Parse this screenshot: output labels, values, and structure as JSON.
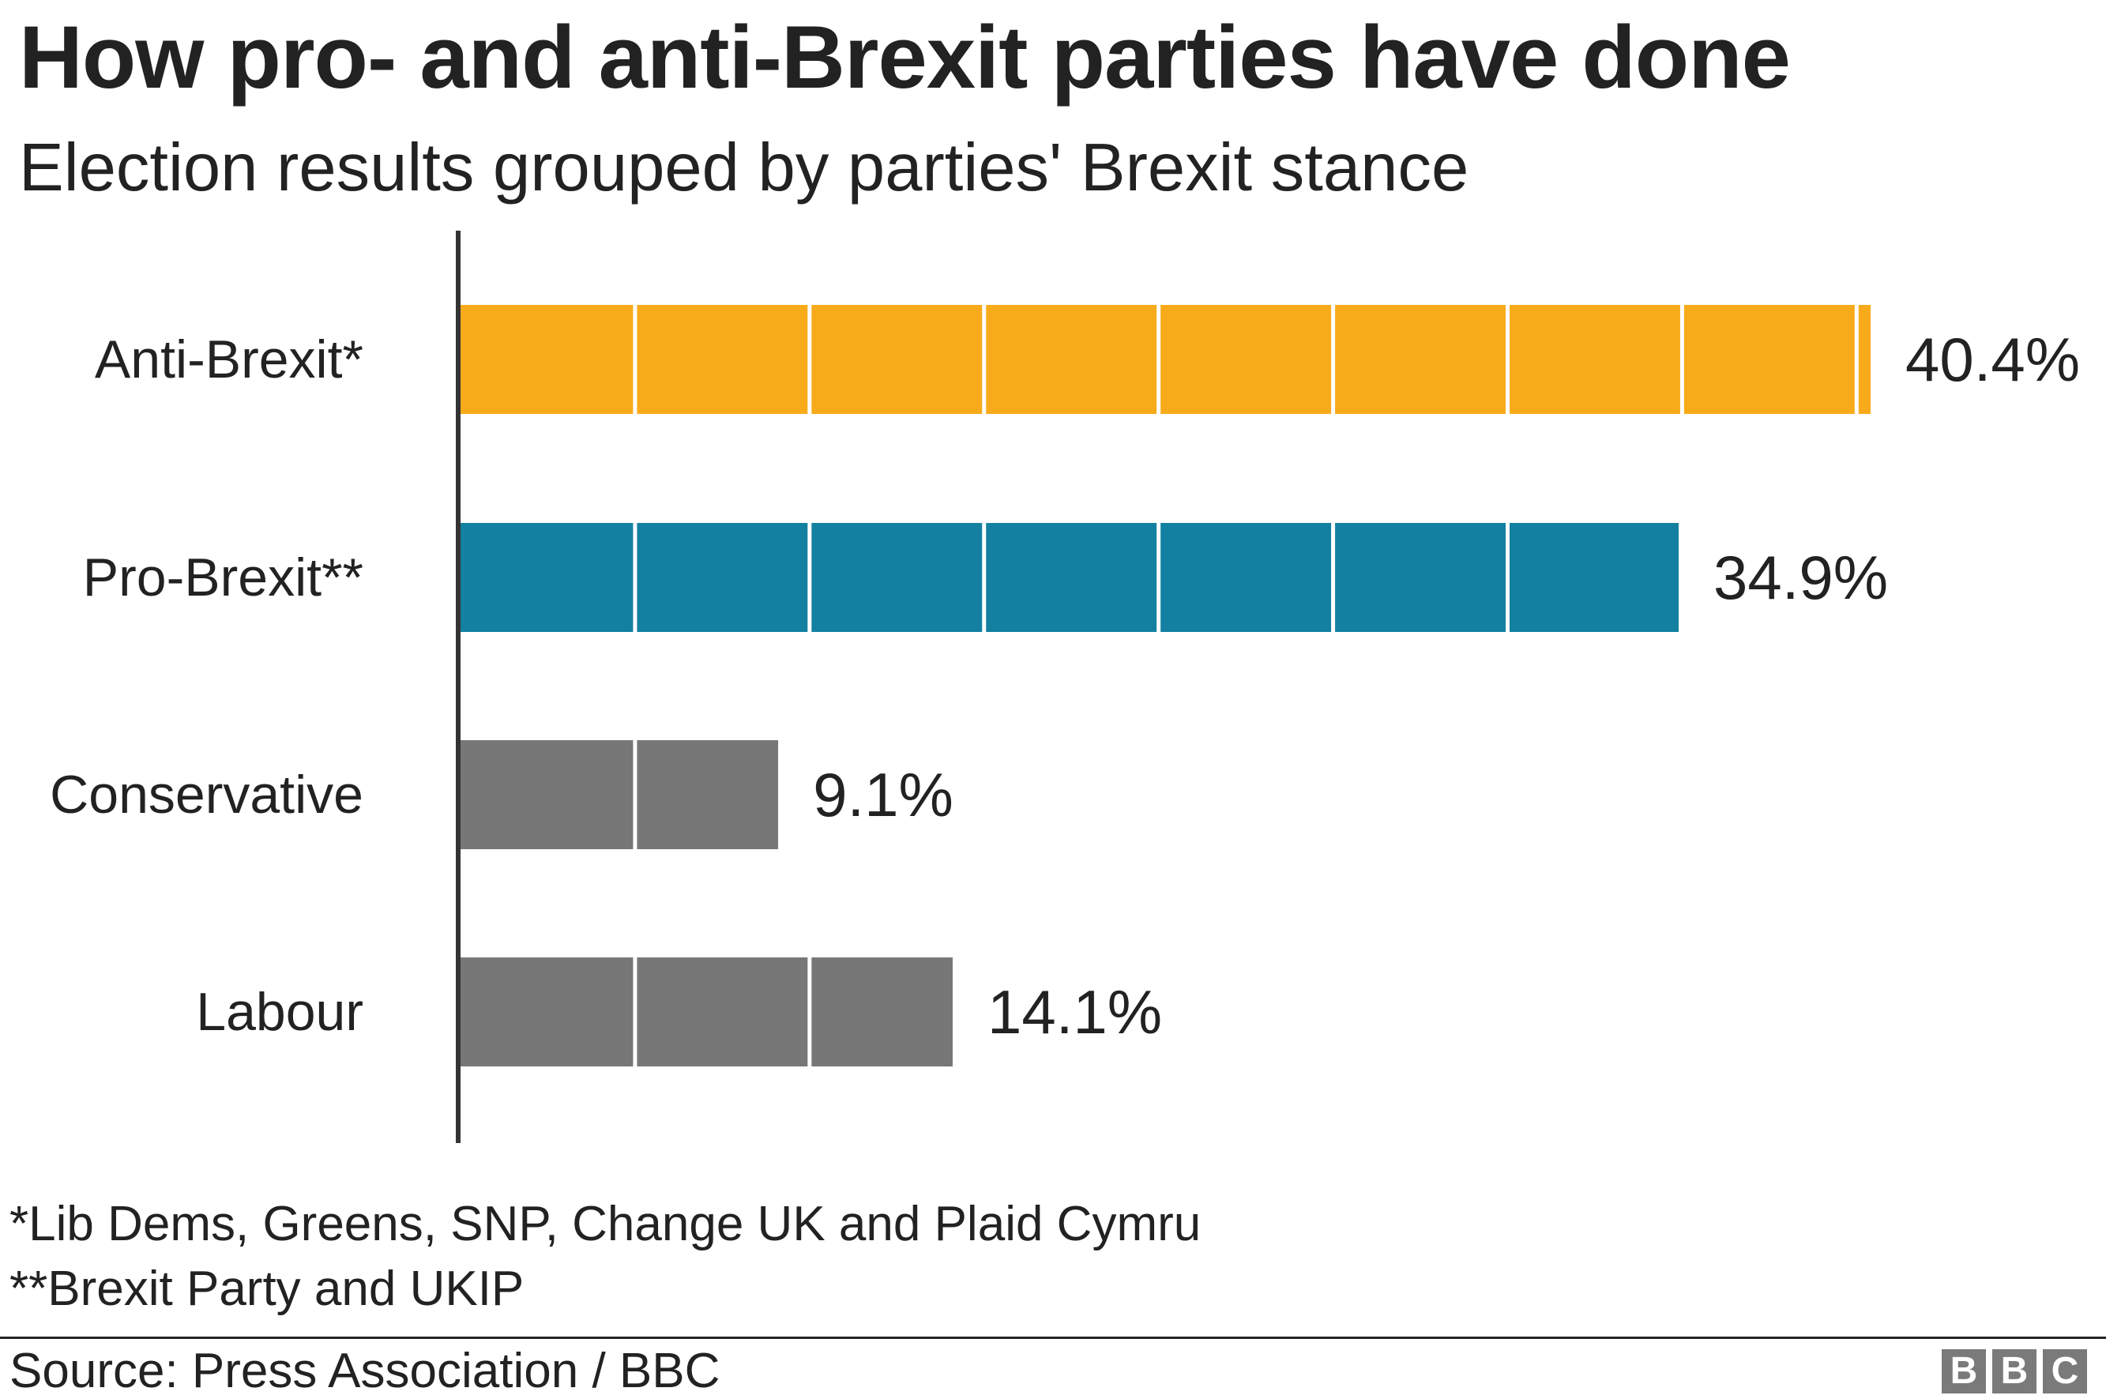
{
  "title": "How pro- and anti-Brexit parties have done",
  "subtitle": "Election results grouped by parties' Brexit stance",
  "footnotes": [
    "*Lib Dems, Greens, SNP, Change UK and Plaid Cymru",
    "**Brexit Party and UKIP"
  ],
  "source": "Source: Press Association / BBC",
  "logo": {
    "letters": [
      "B",
      "B",
      "C"
    ]
  },
  "chart_data": {
    "type": "bar",
    "orientation": "horizontal",
    "categories": [
      "Anti-Brexit*",
      "Pro-Brexit**",
      "Conservative",
      "Labour"
    ],
    "values": [
      40.4,
      34.9,
      9.1,
      14.1
    ],
    "value_labels": [
      "40.4%",
      "34.9%",
      "9.1%",
      "14.1%"
    ],
    "colors": [
      "#f8ab1a",
      "#1380a1",
      "#777777",
      "#777777"
    ],
    "segment_size": 5,
    "xlim": [
      0,
      40.4
    ],
    "grid": false,
    "xlabel": "",
    "ylabel": ""
  }
}
